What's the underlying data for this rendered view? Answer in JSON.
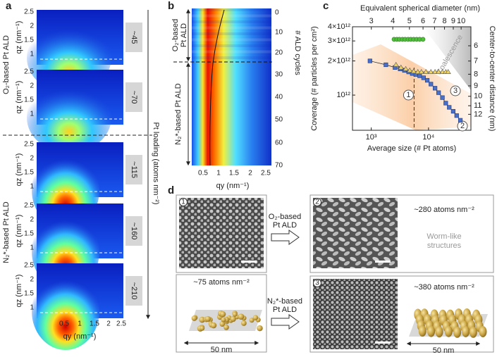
{
  "panel_labels": [
    "a",
    "b",
    "c",
    "d"
  ],
  "panel_a": {
    "maps": [
      "~45",
      "~70",
      "~115",
      "~160",
      "~210"
    ],
    "y_label": "qz (nm⁻¹)",
    "x_label": "qy (nm⁻¹)",
    "y_ticks": [
      "2.5",
      "2",
      "1.5",
      "1"
    ],
    "x_ticks": [
      "0.5",
      "1",
      "1.5",
      "2",
      "2.5"
    ],
    "group_labels": [
      "O₂-based Pt ALD",
      "N₂*-based Pt ALD"
    ],
    "loading_label": "Pt loading (atoms nm⁻²)"
  },
  "panel_b": {
    "x_ticks": [
      "0.5",
      "1",
      "1.5",
      "2",
      "2.5"
    ],
    "x_label": "qy (nm⁻¹)",
    "cycle_ticks": [
      "0",
      "10",
      "20",
      "30",
      "40",
      "50",
      "60",
      "70"
    ],
    "cycle_label": "# ALD cycles",
    "o2_label": [
      "O₂-based",
      "Pt ALD"
    ],
    "n2_label": "N₂*-based Pt ALD"
  },
  "panel_d": {
    "steps": [
      "1",
      "2",
      "3"
    ],
    "loadings": [
      "~75 atoms nm⁻²",
      "~280 atoms nm⁻²",
      "~380 atoms nm⁻²"
    ],
    "arrow_labels": [
      [
        "O₂-based",
        "Pt ALD"
      ],
      [
        "N₂*-based",
        "Pt ALD"
      ]
    ],
    "note": [
      "Worm-like",
      "structures"
    ],
    "scale_labels": [
      "50 nm",
      "50 nm"
    ]
  },
  "chart_data": {
    "type": "scatter",
    "log_x": true,
    "log_y": true,
    "x_label": "Average size (# Pt atoms)",
    "y_label": "Coverage (# particles per cm²)",
    "x2_label": "Equivalent spherical diameter (nm)",
    "y2_label": "Center-to-center distance (nm)",
    "xlim": [
      470,
      55000
    ],
    "ylim": [
      490000000000,
      4000000000000
    ],
    "xticks": [
      {
        "value": 1000,
        "label": "10³"
      },
      {
        "value": 10000,
        "label": "10⁴"
      }
    ],
    "yticks": [
      {
        "value": 1000000000000,
        "label": "10¹²"
      },
      {
        "value": 2000000000000,
        "label": "2×10¹²"
      },
      {
        "value": 3000000000000,
        "label": "3×10¹²"
      },
      {
        "value": 4000000000000,
        "label": "4×10¹²"
      }
    ],
    "x2lim": [
      2.33,
      11.4
    ],
    "x2ticks": [
      3,
      4,
      5,
      6,
      7,
      8,
      9,
      10
    ],
    "y2lim": [
      14.1,
      4.95
    ],
    "y2ticks": [
      6,
      7,
      8,
      9,
      10,
      11,
      12
    ],
    "reference_x": 5600,
    "annotations": [
      "Coalescence",
      "1",
      "2",
      "3"
    ],
    "series": [
      {
        "color": "#4fc23a",
        "marker": "circle",
        "line": true,
        "x": [
          2500,
          2800,
          3100,
          3500,
          3900,
          4400,
          4900,
          5500,
          6200,
          7000,
          8000
        ],
        "values": [
          3100000000000,
          3100000000000,
          3100000000000,
          3100000000000,
          3100000000000,
          3100000000000,
          3100000000000,
          3100000000000,
          3100000000000,
          3100000000000,
          3100000000000
        ]
      },
      {
        "color": "#4a6fc7",
        "marker": "square",
        "line": true,
        "x": [
          950,
          1800,
          2600,
          3200,
          3800,
          4500,
          5200,
          6000,
          7000,
          8200,
          9500,
          11000,
          13000,
          15000,
          17500,
          20000,
          23000,
          27000,
          31000,
          36000
        ],
        "values": [
          2000000000000,
          1850000000000,
          1750000000000,
          1700000000000,
          1650000000000,
          1600000000000,
          1550000000000,
          1520000000000,
          1480000000000,
          1420000000000,
          1350000000000,
          1250000000000,
          1150000000000,
          1050000000000,
          950000000000,
          850000000000,
          780000000000,
          720000000000,
          660000000000,
          600000000000
        ]
      },
      {
        "color": "#f2d35a",
        "marker": "triangle",
        "line": true,
        "x": [
          2700,
          3300,
          4000,
          4700,
          5500,
          6500,
          7500,
          9000,
          11000,
          13000,
          15000,
          17500,
          20000,
          22000
        ],
        "values": [
          1850000000000,
          1750000000000,
          1700000000000,
          1650000000000,
          1620000000000,
          1600000000000,
          1600000000000,
          1600000000000,
          1600000000000,
          1600000000000,
          1600000000000,
          1600000000000,
          1600000000000,
          1600000000000
        ]
      }
    ]
  }
}
